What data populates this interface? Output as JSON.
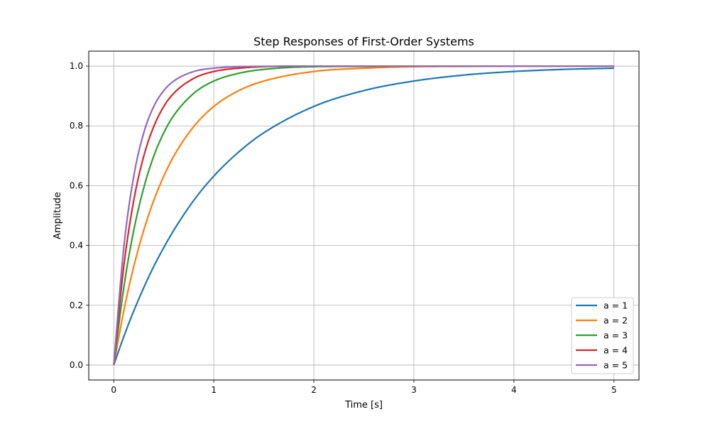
{
  "chart_data": {
    "type": "line",
    "title": "Step Responses of First-Order Systems",
    "xlabel": "Time [s]",
    "ylabel": "Amplitude",
    "xlim": [
      -0.25,
      5.25
    ],
    "ylim": [
      -0.05,
      1.05
    ],
    "xticks": [
      0,
      1,
      2,
      3,
      4,
      5
    ],
    "xtick_labels": [
      "0",
      "1",
      "2",
      "3",
      "4",
      "5"
    ],
    "yticks": [
      0.0,
      0.2,
      0.4,
      0.6,
      0.8,
      1.0
    ],
    "ytick_labels": [
      "0.0",
      "0.2",
      "0.4",
      "0.6",
      "0.8",
      "1.0"
    ],
    "grid": true,
    "legend_position": "lower-right",
    "x": [
      0,
      0.1,
      0.2,
      0.3,
      0.4,
      0.5,
      0.6,
      0.8,
      1.0,
      1.25,
      1.5,
      2.0,
      2.5,
      3.0,
      3.5,
      4.0,
      4.5,
      5.0
    ],
    "series": [
      {
        "name": "a = 1",
        "color": "#1f77b4",
        "values": [
          0,
          0.095,
          0.181,
          0.259,
          0.33,
          0.393,
          0.451,
          0.551,
          0.632,
          0.713,
          0.777,
          0.865,
          0.918,
          0.95,
          0.97,
          0.982,
          0.989,
          0.993
        ]
      },
      {
        "name": "a = 2",
        "color": "#ff7f0e",
        "values": [
          0,
          0.181,
          0.33,
          0.451,
          0.551,
          0.632,
          0.699,
          0.798,
          0.865,
          0.918,
          0.95,
          0.982,
          0.993,
          0.998,
          0.999,
          1.0,
          1.0,
          1.0
        ]
      },
      {
        "name": "a = 3",
        "color": "#2ca02c",
        "values": [
          0,
          0.259,
          0.451,
          0.593,
          0.699,
          0.777,
          0.835,
          0.909,
          0.95,
          0.976,
          0.989,
          0.998,
          0.999,
          1.0,
          1.0,
          1.0,
          1.0,
          1.0
        ]
      },
      {
        "name": "a = 4",
        "color": "#d62728",
        "values": [
          0,
          0.33,
          0.551,
          0.699,
          0.798,
          0.865,
          0.909,
          0.959,
          0.982,
          0.993,
          0.998,
          1.0,
          1.0,
          1.0,
          1.0,
          1.0,
          1.0,
          1.0
        ]
      },
      {
        "name": "a = 5",
        "color": "#9467bd",
        "values": [
          0,
          0.393,
          0.632,
          0.777,
          0.865,
          0.918,
          0.95,
          0.982,
          0.993,
          0.998,
          0.999,
          1.0,
          1.0,
          1.0,
          1.0,
          1.0,
          1.0,
          1.0
        ]
      }
    ]
  }
}
